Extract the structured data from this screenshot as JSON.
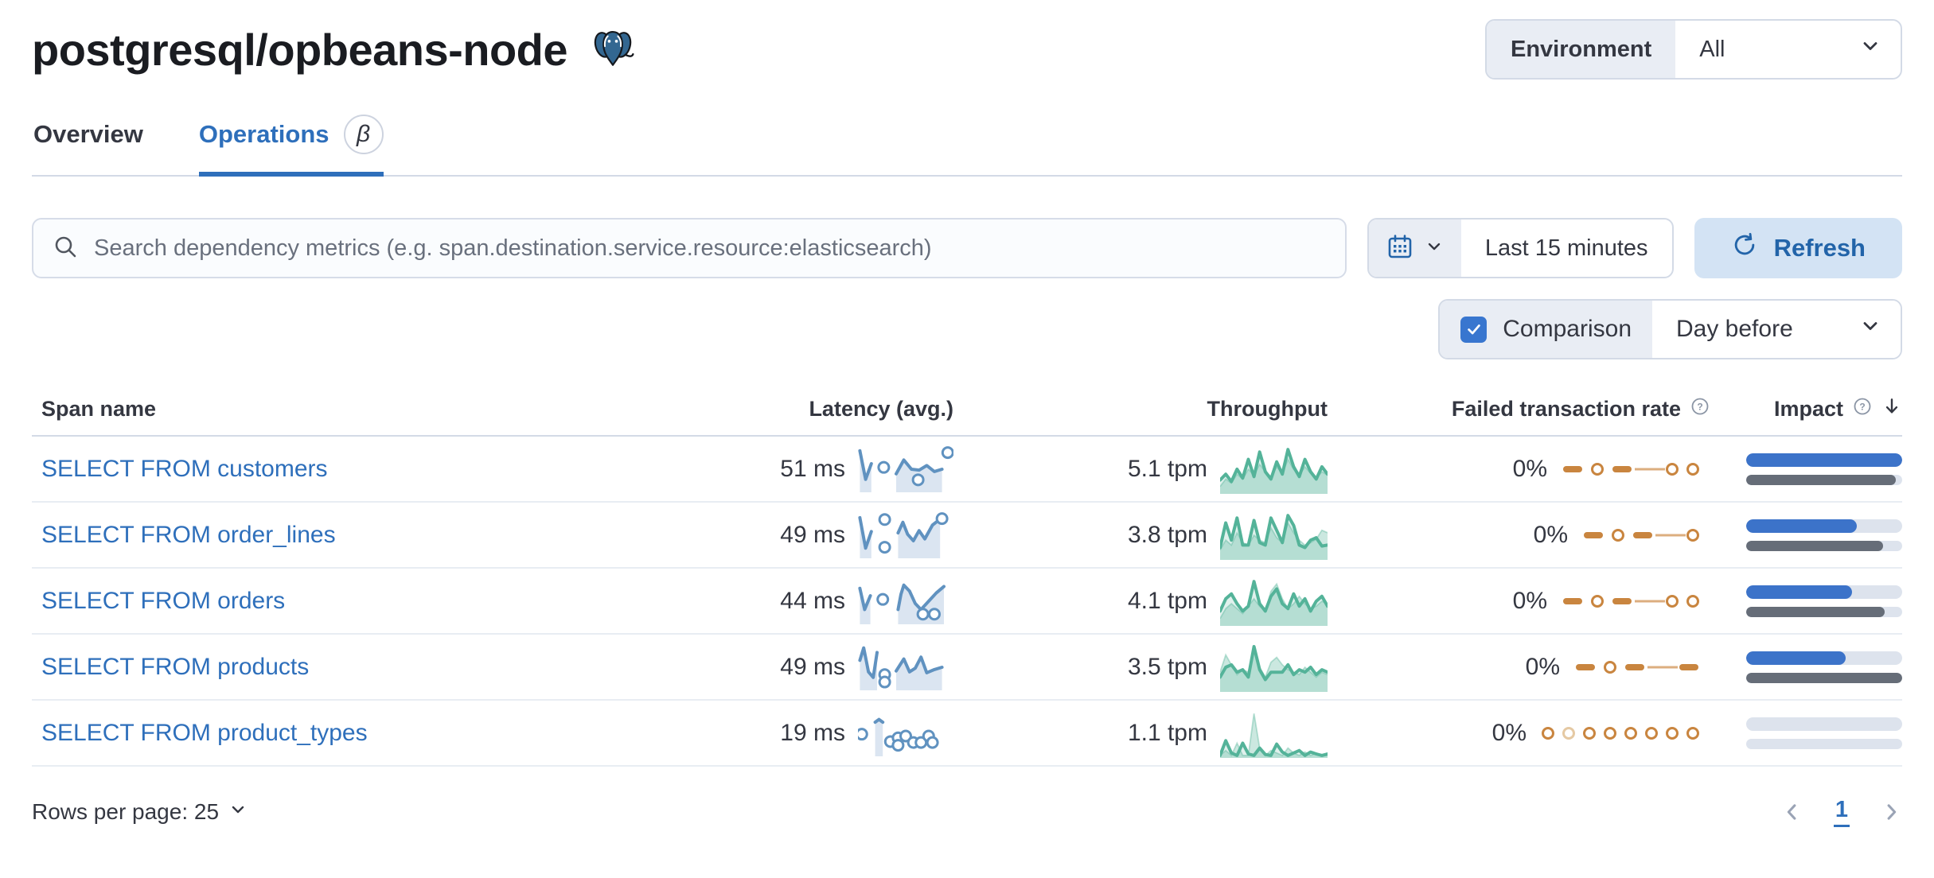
{
  "header": {
    "title": "postgresql/opbeans-node",
    "environment_label": "Environment",
    "environment_value": "All"
  },
  "tabs": [
    {
      "label": "Overview",
      "active": false
    },
    {
      "label": "Operations",
      "active": true,
      "badge": "β"
    }
  ],
  "controls": {
    "search_placeholder": "Search dependency metrics (e.g. span.destination.service.resource:elasticsearch)",
    "time_range": "Last 15 minutes",
    "refresh_label": "Refresh",
    "comparison_label": "Comparison",
    "comparison_checked": true,
    "comparison_value": "Day before"
  },
  "table": {
    "columns": [
      "Span name",
      "Latency (avg.)",
      "Throughput",
      "Failed transaction rate",
      "Impact"
    ],
    "rows": [
      {
        "span_name": "SELECT FROM customers",
        "latency": "51 ms",
        "throughput": "5.1 tpm",
        "failed_rate": "0%",
        "impact_pct": 100,
        "impact_prev_pct": 96,
        "latency_spark": {
          "segments": [
            [
              [
                2,
                10
              ],
              [
                8,
                72
              ],
              [
                14,
                38
              ]
            ],
            [
              [
                40,
                60
              ],
              [
                48,
                30
              ],
              [
                56,
                50
              ],
              [
                64,
                52
              ],
              [
                72,
                42
              ],
              [
                80,
                55
              ],
              [
                88,
                50
              ]
            ]
          ],
          "dots": [
            [
              27,
              46
            ],
            [
              63,
              73
            ],
            [
              94,
              14
            ]
          ]
        },
        "throughput_spark": {
          "cur": [
            72,
            60,
            75,
            50,
            68,
            30,
            65,
            15,
            55,
            70,
            35,
            60,
            10,
            45,
            65,
            30,
            55,
            70,
            45,
            60
          ],
          "prev": [
            85,
            70,
            78,
            60,
            70,
            50,
            62,
            40,
            55,
            65,
            45,
            58,
            30,
            50,
            62,
            45,
            58,
            68,
            55,
            62
          ]
        },
        "failed_spark": [
          "dash",
          "dot",
          "dash",
          "line",
          "dot",
          "dot"
        ]
      },
      {
        "span_name": "SELECT FROM order_lines",
        "latency": "49 ms",
        "throughput": "3.8 tpm",
        "failed_rate": "0%",
        "impact_pct": 71,
        "impact_prev_pct": 88,
        "latency_spark": {
          "segments": [
            [
              [
                2,
                12
              ],
              [
                8,
                78
              ],
              [
                14,
                42
              ]
            ],
            [
              [
                42,
                45
              ],
              [
                47,
                22
              ],
              [
                52,
                48
              ],
              [
                58,
                62
              ],
              [
                64,
                40
              ],
              [
                70,
                58
              ],
              [
                78,
                28
              ],
              [
                86,
                15
              ]
            ]
          ],
          "dots": [
            [
              28,
              16
            ],
            [
              28,
              76
            ],
            [
              88,
              14
            ]
          ]
        },
        "throughput_spark": {
          "cur": [
            75,
            25,
            60,
            15,
            70,
            70,
            20,
            65,
            70,
            15,
            40,
            65,
            10,
            30,
            70,
            75,
            60,
            55,
            72,
            70
          ],
          "prev": [
            80,
            60,
            70,
            45,
            65,
            70,
            50,
            60,
            65,
            35,
            55,
            65,
            25,
            45,
            60,
            70,
            65,
            58,
            40,
            45
          ]
        },
        "failed_spark": [
          "dash",
          "dot",
          "dash",
          "line",
          "dot"
        ]
      },
      {
        "span_name": "SELECT FROM orders",
        "latency": "44 ms",
        "throughput": "4.1 tpm",
        "failed_rate": "0%",
        "impact_pct": 68,
        "impact_prev_pct": 89,
        "latency_spark": {
          "segments": [
            [
              [
                2,
                22
              ],
              [
                7,
                68
              ],
              [
                13,
                38
              ]
            ],
            [
              [
                42,
                68
              ],
              [
                45,
                35
              ],
              [
                48,
                15
              ],
              [
                54,
                28
              ],
              [
                60,
                55
              ],
              [
                66,
                68
              ],
              [
                74,
                50
              ],
              [
                82,
                32
              ],
              [
                90,
                18
              ]
            ]
          ],
          "dots": [
            [
              26,
              46
            ],
            [
              68,
              78
            ],
            [
              80,
              78
            ]
          ]
        },
        "throughput_spark": {
          "cur": [
            70,
            45,
            35,
            55,
            70,
            60,
            10,
            55,
            70,
            40,
            25,
            55,
            65,
            35,
            60,
            45,
            70,
            50,
            40,
            60
          ],
          "prev": [
            85,
            65,
            55,
            65,
            75,
            60,
            45,
            60,
            70,
            30,
            15,
            45,
            65,
            55,
            40,
            55,
            65,
            60,
            50,
            55
          ]
        },
        "failed_spark": [
          "dash",
          "dot",
          "dash",
          "line",
          "dot",
          "dot"
        ]
      },
      {
        "span_name": "SELECT FROM products",
        "latency": "49 ms",
        "throughput": "3.5 tpm",
        "failed_rate": "0%",
        "impact_pct": 64,
        "impact_prev_pct": 100,
        "latency_spark": {
          "segments": [
            [
              [
                2,
                35
              ],
              [
                6,
                8
              ],
              [
                11,
                60
              ],
              [
                16,
                72
              ],
              [
                20,
                18
              ]
            ],
            [
              [
                40,
                58
              ],
              [
                48,
                32
              ],
              [
                54,
                60
              ],
              [
                60,
                52
              ],
              [
                66,
                28
              ],
              [
                72,
                62
              ],
              [
                80,
                55
              ],
              [
                88,
                50
              ]
            ]
          ],
          "dots": [
            [
              28,
              66
            ],
            [
              28,
              82
            ]
          ]
        },
        "throughput_spark": {
          "cur": [
            70,
            50,
            45,
            60,
            55,
            70,
            8,
            55,
            75,
            60,
            60,
            60,
            45,
            65,
            55,
            60,
            50,
            65,
            55,
            60
          ],
          "prev": [
            60,
            25,
            45,
            65,
            55,
            60,
            15,
            50,
            70,
            40,
            30,
            45,
            55,
            60,
            65,
            50,
            60,
            70,
            60,
            65
          ]
        },
        "failed_spark": [
          "dash",
          "dot",
          "dash",
          "line",
          "dash"
        ]
      },
      {
        "span_name": "SELECT FROM product_types",
        "latency": "19 ms",
        "throughput": "1.1 tpm",
        "failed_rate": "0%",
        "impact_pct": 0,
        "impact_prev_pct": 0,
        "latency_spark": {
          "segments": [
            [
              [
                18,
                26
              ],
              [
                22,
                20
              ],
              [
                26,
                26
              ]
            ]
          ],
          "dots": [
            [
              4,
              52
            ],
            [
              34,
              68
            ],
            [
              42,
              60
            ],
            [
              42,
              76
            ],
            [
              50,
              56
            ],
            [
              58,
              70
            ],
            [
              66,
              70
            ],
            [
              74,
              56
            ],
            [
              78,
              70
            ]
          ]
        },
        "throughput_spark": {
          "cur": [
            95,
            65,
            90,
            95,
            70,
            92,
            95,
            80,
            93,
            95,
            72,
            88,
            95,
            90,
            85,
            95,
            88,
            92,
            95,
            92
          ],
          "prev": [
            95,
            85,
            95,
            70,
            95,
            95,
            10,
            80,
            95,
            85,
            90,
            95,
            80,
            90,
            95,
            88,
            95,
            90,
            95,
            95
          ]
        },
        "failed_spark": [
          "dot",
          "dot_light",
          "dot",
          "dot",
          "dot",
          "dot",
          "dot",
          "dot"
        ]
      }
    ]
  },
  "footer": {
    "rows_per_page_label": "Rows per page: 25",
    "page": "1"
  },
  "colors": {
    "link_blue": "#2e6fbb",
    "latency_blue": "#6092c0",
    "latency_area": "#dbe5f1",
    "throughput_green": "#54b399",
    "failed_orange": "#c9853f",
    "failed_orange_light": "#e5c9a3",
    "impact_blue": "#3c73c9",
    "impact_grey": "#666d78",
    "refresh_bg": "#d3e3f4",
    "refresh_text": "#2264a9",
    "checkbox_blue": "#3876cf",
    "postgres_blue": "#336791"
  }
}
